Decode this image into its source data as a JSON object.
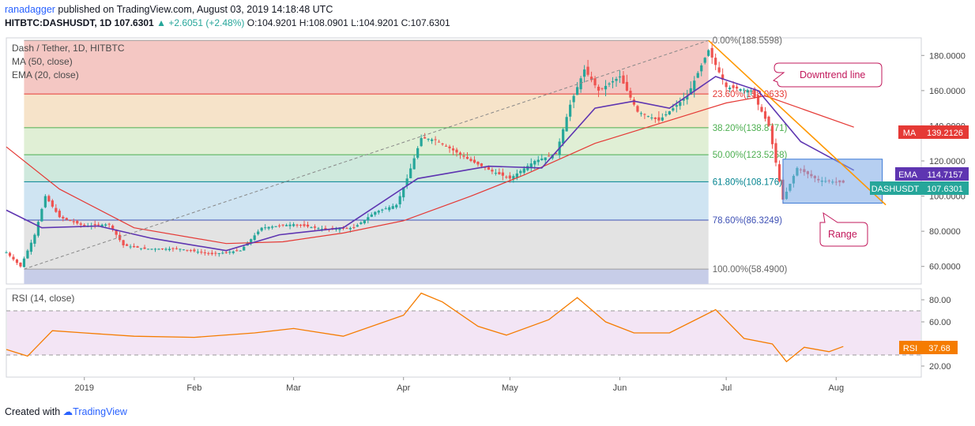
{
  "header": {
    "user": "ranadagger",
    "published": " published on TradingView.com, August 03, 2019 14:18:48 UTC",
    "symbol": "HITBTC:DASHUSDT, 1D ",
    "last": "107.6301",
    "change_arrow": "▲",
    "change": "+2.6051 (+2.48%)",
    "open": "O:104.9201",
    "high": "H:108.0901",
    "low": "L:104.9201",
    "close": "C:107.6301"
  },
  "footer": {
    "created_with": "Created with",
    "brand": "TradingView"
  },
  "legend": {
    "title": "Dash / Tether, 1D, HITBTC",
    "ma": "MA (50, close)",
    "ema": "EMA (20, close)",
    "rsi": "RSI (14, close)"
  },
  "annotations": {
    "downtrend": "Downtrend line",
    "range": "Range"
  },
  "tags": {
    "ma_label": "MA",
    "ma_value": "139.2126",
    "ema_label": "EMA",
    "ema_value": "114.7157",
    "price_label": "DASHUSDT",
    "price_value": "107.6301",
    "rsi_label": "RSI",
    "rsi_value": "37.68"
  },
  "colors": {
    "up": "#26a69a",
    "down": "#ef5350",
    "ma": "#e53935",
    "ema": "#5e35b1",
    "trend": "#ff9800",
    "range_fill": "#7aa7e6",
    "rsi_line": "#f57c00",
    "rsi_band": "#f3e5f5"
  },
  "chart_data": {
    "type": "line",
    "price_axis": {
      "ylim": [
        50,
        190
      ],
      "ticks": [
        "180.0000",
        "160.0000",
        "140.0000",
        "120.0000",
        "100.0000",
        "80.0000",
        "60.0000"
      ]
    },
    "rsi_axis": {
      "ylim": [
        10,
        90
      ],
      "ticks": [
        "80.00",
        "60.00",
        "40.00",
        "20.00"
      ],
      "bands": [
        70,
        30
      ]
    },
    "time_axis": {
      "start": "2018-12-10",
      "end": "2019-08-25",
      "labels": [
        {
          "date": "2019-01-01",
          "label": "2019"
        },
        {
          "date": "2019-02-01",
          "label": "Feb"
        },
        {
          "date": "2019-03-01",
          "label": "Mar"
        },
        {
          "date": "2019-04-01",
          "label": "Apr"
        },
        {
          "date": "2019-05-01",
          "label": "May"
        },
        {
          "date": "2019-06-01",
          "label": "Jun"
        },
        {
          "date": "2019-07-01",
          "label": "Jul"
        },
        {
          "date": "2019-08-01",
          "label": "Aug"
        }
      ]
    },
    "fibonacci": {
      "start": "2018-12-15",
      "end": "2019-06-26",
      "levels": [
        {
          "value": 188.5598,
          "label": "0.00%(188.5598)",
          "fill": "#f4c7c3"
        },
        {
          "value": 158.0633,
          "label": "23.60%(158.0633)",
          "fill": "#f6e3c9"
        },
        {
          "value": 138.8771,
          "label": "38.20%(138.8771)",
          "fill": "#e0efd5"
        },
        {
          "value": 123.5258,
          "label": "50.00%(123.5258)",
          "fill": "#cfe9dd"
        },
        {
          "value": 108.176,
          "label": "61.80%(108.176)",
          "fill": "#cfe4f2"
        },
        {
          "value": 86.3249,
          "label": "78.60%(86.3249)",
          "fill": "#e3e3e3"
        },
        {
          "value": 58.49,
          "label": "100.00%(58.4900)",
          "fill": "#c7cde8"
        }
      ]
    },
    "trendline": [
      {
        "date": "2019-06-26",
        "value": 188.5
      },
      {
        "date": "2019-08-15",
        "value": 95
      }
    ],
    "range_box": {
      "start": "2019-07-17",
      "end": "2019-08-14",
      "top": 121,
      "bottom": 96
    },
    "series": [
      {
        "name": "Dash / Tether",
        "points": [
          [
            "2018-12-10",
            68
          ],
          [
            "2018-12-14",
            60
          ],
          [
            "2018-12-18",
            78
          ],
          [
            "2018-12-21",
            100
          ],
          [
            "2018-12-25",
            88
          ],
          [
            "2019-01-01",
            83
          ],
          [
            "2019-01-08",
            84
          ],
          [
            "2019-01-12",
            72
          ],
          [
            "2019-01-18",
            70
          ],
          [
            "2019-01-28",
            70
          ],
          [
            "2019-02-06",
            67
          ],
          [
            "2019-02-14",
            69
          ],
          [
            "2019-02-20",
            82
          ],
          [
            "2019-03-01",
            84
          ],
          [
            "2019-03-10",
            81
          ],
          [
            "2019-03-18",
            82
          ],
          [
            "2019-03-24",
            91
          ],
          [
            "2019-03-30",
            95
          ],
          [
            "2019-04-02",
            110
          ],
          [
            "2019-04-06",
            133
          ],
          [
            "2019-04-10",
            132
          ],
          [
            "2019-04-20",
            120
          ],
          [
            "2019-04-26",
            114
          ],
          [
            "2019-05-01",
            110
          ],
          [
            "2019-05-08",
            120
          ],
          [
            "2019-05-14",
            124
          ],
          [
            "2019-05-18",
            152
          ],
          [
            "2019-05-22",
            172
          ],
          [
            "2019-05-26",
            160
          ],
          [
            "2019-06-01",
            168
          ],
          [
            "2019-06-06",
            148
          ],
          [
            "2019-06-12",
            143
          ],
          [
            "2019-06-20",
            157
          ],
          [
            "2019-06-26",
            183
          ],
          [
            "2019-07-01",
            162
          ],
          [
            "2019-07-08",
            160
          ],
          [
            "2019-07-13",
            140
          ],
          [
            "2019-07-17",
            98
          ],
          [
            "2019-07-21",
            116
          ],
          [
            "2019-07-27",
            109
          ],
          [
            "2019-08-03",
            107.63
          ]
        ]
      },
      {
        "name": "MA (50, close)",
        "points": [
          [
            "2018-12-10",
            128
          ],
          [
            "2018-12-25",
            104
          ],
          [
            "2019-01-15",
            82
          ],
          [
            "2019-02-10",
            73
          ],
          [
            "2019-02-26",
            74
          ],
          [
            "2019-03-15",
            79
          ],
          [
            "2019-04-01",
            86
          ],
          [
            "2019-04-20",
            100
          ],
          [
            "2019-05-05",
            112
          ],
          [
            "2019-05-25",
            130
          ],
          [
            "2019-06-15",
            143
          ],
          [
            "2019-07-01",
            153
          ],
          [
            "2019-07-12",
            157
          ],
          [
            "2019-08-06",
            139.2126
          ]
        ]
      },
      {
        "name": "EMA (20, close)",
        "points": [
          [
            "2018-12-10",
            92
          ],
          [
            "2018-12-20",
            82
          ],
          [
            "2019-01-05",
            83
          ],
          [
            "2019-01-20",
            76
          ],
          [
            "2019-02-10",
            69
          ],
          [
            "2019-02-25",
            78
          ],
          [
            "2019-03-15",
            82
          ],
          [
            "2019-04-05",
            110
          ],
          [
            "2019-04-25",
            117
          ],
          [
            "2019-05-10",
            116
          ],
          [
            "2019-05-25",
            150
          ],
          [
            "2019-06-05",
            154
          ],
          [
            "2019-06-15",
            150
          ],
          [
            "2019-06-28",
            168
          ],
          [
            "2019-07-10",
            160
          ],
          [
            "2019-07-22",
            131
          ],
          [
            "2019-08-06",
            114.7157
          ]
        ]
      },
      {
        "name": "RSI (14, close)",
        "points": [
          [
            "2018-12-10",
            35
          ],
          [
            "2018-12-16",
            29
          ],
          [
            "2018-12-23",
            52
          ],
          [
            "2019-01-01",
            50
          ],
          [
            "2019-01-15",
            47
          ],
          [
            "2019-02-01",
            46
          ],
          [
            "2019-02-18",
            50
          ],
          [
            "2019-03-01",
            54
          ],
          [
            "2019-03-15",
            47
          ],
          [
            "2019-04-01",
            66
          ],
          [
            "2019-04-06",
            86
          ],
          [
            "2019-04-12",
            78
          ],
          [
            "2019-04-22",
            56
          ],
          [
            "2019-04-30",
            48
          ],
          [
            "2019-05-12",
            62
          ],
          [
            "2019-05-20",
            82
          ],
          [
            "2019-05-28",
            60
          ],
          [
            "2019-06-05",
            50
          ],
          [
            "2019-06-15",
            50
          ],
          [
            "2019-06-28",
            71
          ],
          [
            "2019-07-06",
            45
          ],
          [
            "2019-07-14",
            40
          ],
          [
            "2019-07-18",
            24
          ],
          [
            "2019-07-23",
            37
          ],
          [
            "2019-07-30",
            33
          ],
          [
            "2019-08-03",
            37.68
          ]
        ]
      }
    ]
  }
}
